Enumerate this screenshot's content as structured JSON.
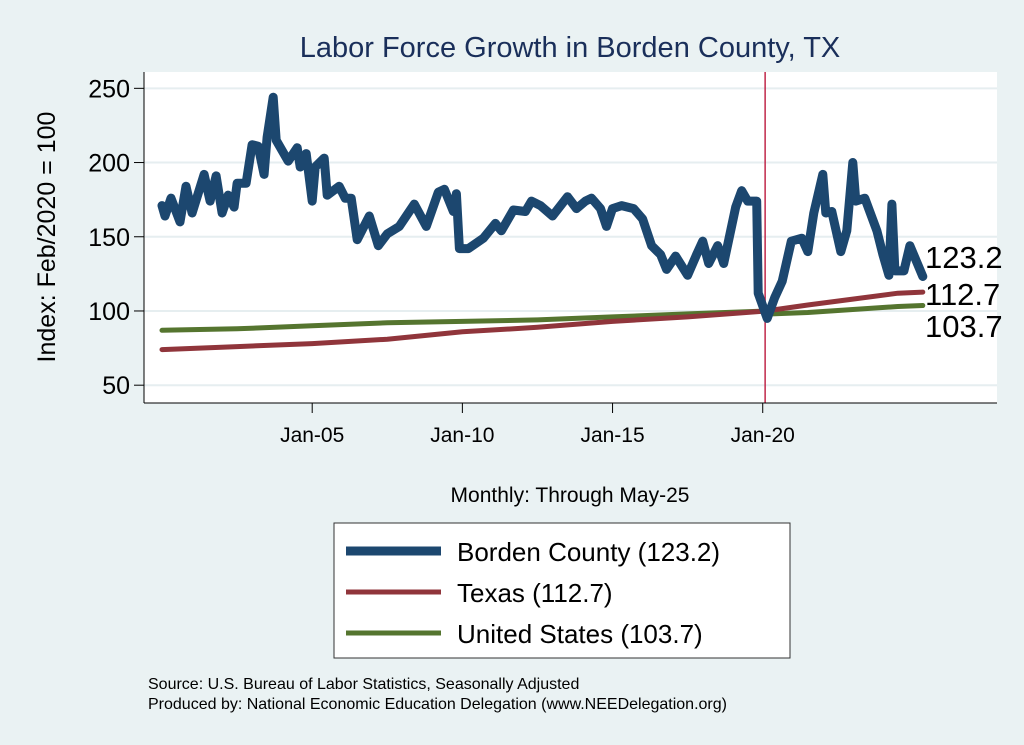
{
  "chart_data": {
    "type": "line",
    "title": "Labor Force Growth in Borden  County, TX",
    "xlabel": "Monthly: Through May-25",
    "ylabel": "Index: Feb/2020 = 100",
    "xlim": [
      1999.4,
      2027.8
    ],
    "ylim": [
      38,
      261
    ],
    "yticks": [
      50,
      100,
      150,
      200,
      250
    ],
    "xticks": [
      {
        "value": 2005,
        "label": "Jan-05"
      },
      {
        "value": 2010,
        "label": "Jan-10"
      },
      {
        "value": 2015,
        "label": "Jan-15"
      },
      {
        "value": 2020,
        "label": "Jan-20"
      }
    ],
    "grid": true,
    "reference_line": {
      "x": 2020.08,
      "color": "#c0284a"
    },
    "legend_placement": "bottom",
    "series": [
      {
        "name": "Borden  County (123.2)",
        "color": "#1c476f",
        "end_label": "123.2",
        "x": [
          2000.0,
          2000.1,
          2000.3,
          2000.6,
          2000.8,
          2001.0,
          2001.4,
          2001.6,
          2001.8,
          2002.0,
          2002.2,
          2002.4,
          2002.5,
          2002.8,
          2003.0,
          2003.2,
          2003.4,
          2003.5,
          2003.7,
          2003.8,
          2004.2,
          2004.5,
          2004.6,
          2004.8,
          2005.0,
          2005.1,
          2005.4,
          2005.5,
          2005.9,
          2006.1,
          2006.3,
          2006.5,
          2006.9,
          2007.2,
          2007.5,
          2007.9,
          2008.4,
          2008.8,
          2009.2,
          2009.4,
          2009.7,
          2009.8,
          2009.9,
          2010.2,
          2010.7,
          2011.1,
          2011.3,
          2011.7,
          2012.1,
          2012.3,
          2012.6,
          2013.0,
          2013.5,
          2013.8,
          2014.1,
          2014.3,
          2014.6,
          2014.8,
          2015.0,
          2015.3,
          2015.7,
          2016.0,
          2016.3,
          2016.6,
          2016.8,
          2017.1,
          2017.5,
          2017.8,
          2018.0,
          2018.2,
          2018.5,
          2018.7,
          2019.1,
          2019.3,
          2019.5,
          2019.8,
          2019.85,
          2020.15,
          2020.4,
          2020.65,
          2020.95,
          2021.3,
          2021.5,
          2021.7,
          2022.0,
          2022.1,
          2022.3,
          2022.6,
          2022.8,
          2023.0,
          2023.1,
          2023.4,
          2023.8,
          2024.0,
          2024.2,
          2024.3,
          2024.4,
          2024.7,
          2024.9,
          2025.33
        ],
        "y": [
          171,
          164,
          176,
          160,
          184,
          166,
          192,
          174,
          191,
          166,
          178,
          170,
          186,
          186,
          212,
          211,
          192,
          217,
          244,
          215,
          201,
          210,
          197,
          206,
          174,
          197,
          203,
          178,
          184,
          176,
          176,
          148,
          164,
          144,
          152,
          157,
          172,
          157,
          180,
          182,
          167,
          179,
          142,
          142,
          149,
          159,
          154,
          168,
          167,
          174,
          171,
          164,
          177,
          169,
          174,
          176,
          169,
          157,
          169,
          171,
          169,
          162,
          144,
          138,
          128,
          137,
          124,
          138,
          147,
          132,
          144,
          132,
          170,
          181,
          174,
          174,
          112,
          95,
          109,
          120,
          147,
          149,
          140,
          166,
          192,
          166,
          167,
          140,
          154,
          200,
          174,
          176,
          154,
          138,
          124,
          172,
          127,
          127,
          144,
          123.2
        ]
      },
      {
        "name": "Texas (112.7)",
        "color": "#90353b",
        "end_label": "112.7",
        "x": [
          2000.0,
          2002.5,
          2005.0,
          2007.5,
          2010.0,
          2012.5,
          2015.0,
          2017.5,
          2020.1,
          2021.5,
          2023.0,
          2024.5,
          2025.33
        ],
        "y": [
          74,
          76,
          78,
          81,
          86,
          89,
          93,
          96,
          100,
          104,
          108,
          112,
          112.7
        ]
      },
      {
        "name": "United States (103.7)",
        "color": "#55752f",
        "end_label": "103.7",
        "x": [
          2000.0,
          2002.5,
          2005.0,
          2007.5,
          2010.0,
          2012.5,
          2015.0,
          2017.5,
          2020.1,
          2020.3,
          2021.5,
          2023.0,
          2024.5,
          2025.33
        ],
        "y": [
          87,
          88,
          90,
          92,
          93,
          94,
          96,
          98,
          100,
          98,
          99,
          101,
          103,
          103.7
        ]
      }
    ]
  },
  "source": "Source: U.S. Bureau of Labor Statistics, Seasonally Adjusted",
  "produced_by": "Produced by: National Economic Education Delegation (www.NEEDelegation.org)"
}
